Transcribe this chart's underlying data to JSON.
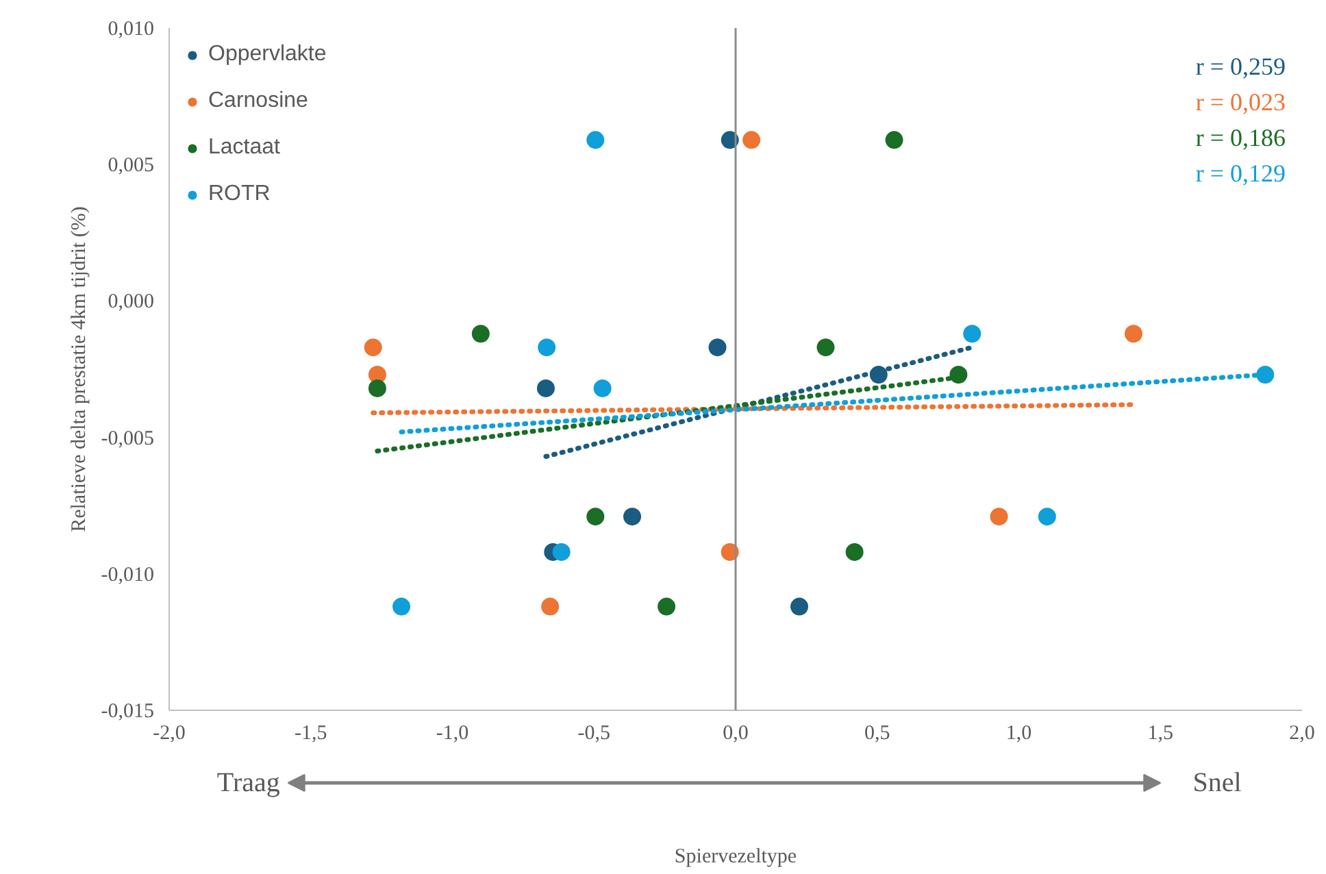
{
  "chart_data": {
    "type": "scatter",
    "xlabel": "Spiervezeltype",
    "ylabel": "Relatieve delta prestatie 4km tijdrit (%)",
    "xlim": [
      -2.0,
      2.0
    ],
    "ylim": [
      -0.015,
      0.01
    ],
    "xticks": [
      {
        "value": -2,
        "label": "-2,0"
      },
      {
        "value": -1.5,
        "label": "-1,5"
      },
      {
        "value": -1,
        "label": "-1,0"
      },
      {
        "value": -0.5,
        "label": "-0,5"
      },
      {
        "value": 0,
        "label": "0,0"
      },
      {
        "value": 0.5,
        "label": "0,5"
      },
      {
        "value": 1,
        "label": "1,0"
      },
      {
        "value": 1.5,
        "label": "1,5"
      },
      {
        "value": 2,
        "label": "2,0"
      }
    ],
    "yticks": [
      {
        "value": -0.015,
        "label": "-0,015"
      },
      {
        "value": -0.01,
        "label": "-0,010"
      },
      {
        "value": -0.005,
        "label": "-0,005"
      },
      {
        "value": 0,
        "label": "0,000"
      },
      {
        "value": 0.005,
        "label": "0,005"
      },
      {
        "value": 0.01,
        "label": "0,010"
      }
    ],
    "grid": false,
    "legend": "top left",
    "marker": "circle",
    "ref_lines": [
      {
        "axis": "x",
        "value": 0,
        "color": "#8c8c8c"
      }
    ],
    "series": [
      {
        "name": "Oppervlakte",
        "color": "#1a5c82",
        "x": [
          -0.02,
          -0.67,
          -0.064,
          0.505,
          -0.365,
          -0.645,
          0.225
        ],
        "values": [
          0.0059,
          -0.0032,
          -0.0017,
          -0.0027,
          -0.0079,
          -0.0092,
          -0.0112
        ]
      },
      {
        "name": "Carnosine",
        "color": "#ed7432",
        "x": [
          0.056,
          -1.28,
          -1.265,
          -0.655,
          -0.02,
          0.93,
          1.405
        ],
        "values": [
          0.0059,
          -0.0017,
          -0.0027,
          -0.0112,
          -0.0092,
          -0.0079,
          -0.0012
        ]
      },
      {
        "name": "Lactaat",
        "color": "#1a6e26",
        "x": [
          0.56,
          -0.9,
          -1.265,
          0.318,
          0.787,
          -0.495,
          0.42,
          -0.244
        ],
        "values": [
          0.0059,
          -0.0012,
          -0.0032,
          -0.0017,
          -0.0027,
          -0.0079,
          -0.0092,
          -0.0112
        ]
      },
      {
        "name": "ROTR",
        "color": "#119fd9",
        "x": [
          -0.495,
          -0.667,
          -0.47,
          -0.615,
          -1.18,
          0.835,
          1.1,
          1.87
        ],
        "values": [
          0.0059,
          -0.0017,
          -0.0032,
          -0.0092,
          -0.0112,
          -0.0012,
          -0.0079,
          -0.0027
        ]
      },
      {
        "type": "line",
        "marker": "none",
        "line_style": "dotted",
        "color": "#1a5c82",
        "x": [
          -0.67,
          0.835
        ],
        "values": [
          -0.0057,
          -0.0017
        ]
      },
      {
        "type": "line",
        "marker": "none",
        "line_style": "dotted",
        "color": "#ed7432",
        "x": [
          -1.28,
          1.405
        ],
        "values": [
          -0.0041,
          -0.0038
        ]
      },
      {
        "type": "line",
        "marker": "none",
        "line_style": "dotted",
        "color": "#1a6e26",
        "x": [
          -1.265,
          0.787
        ],
        "values": [
          -0.0055,
          -0.0028
        ]
      },
      {
        "type": "line",
        "marker": "none",
        "line_style": "dotted",
        "color": "#119fd9",
        "x": [
          -1.18,
          1.87
        ],
        "values": [
          -0.0048,
          -0.0027
        ]
      }
    ],
    "annotations": [
      "r = 0,259",
      "r = 0,023",
      "r = 0,186",
      "r = 0,129",
      "Traag",
      "Snel"
    ]
  }
}
